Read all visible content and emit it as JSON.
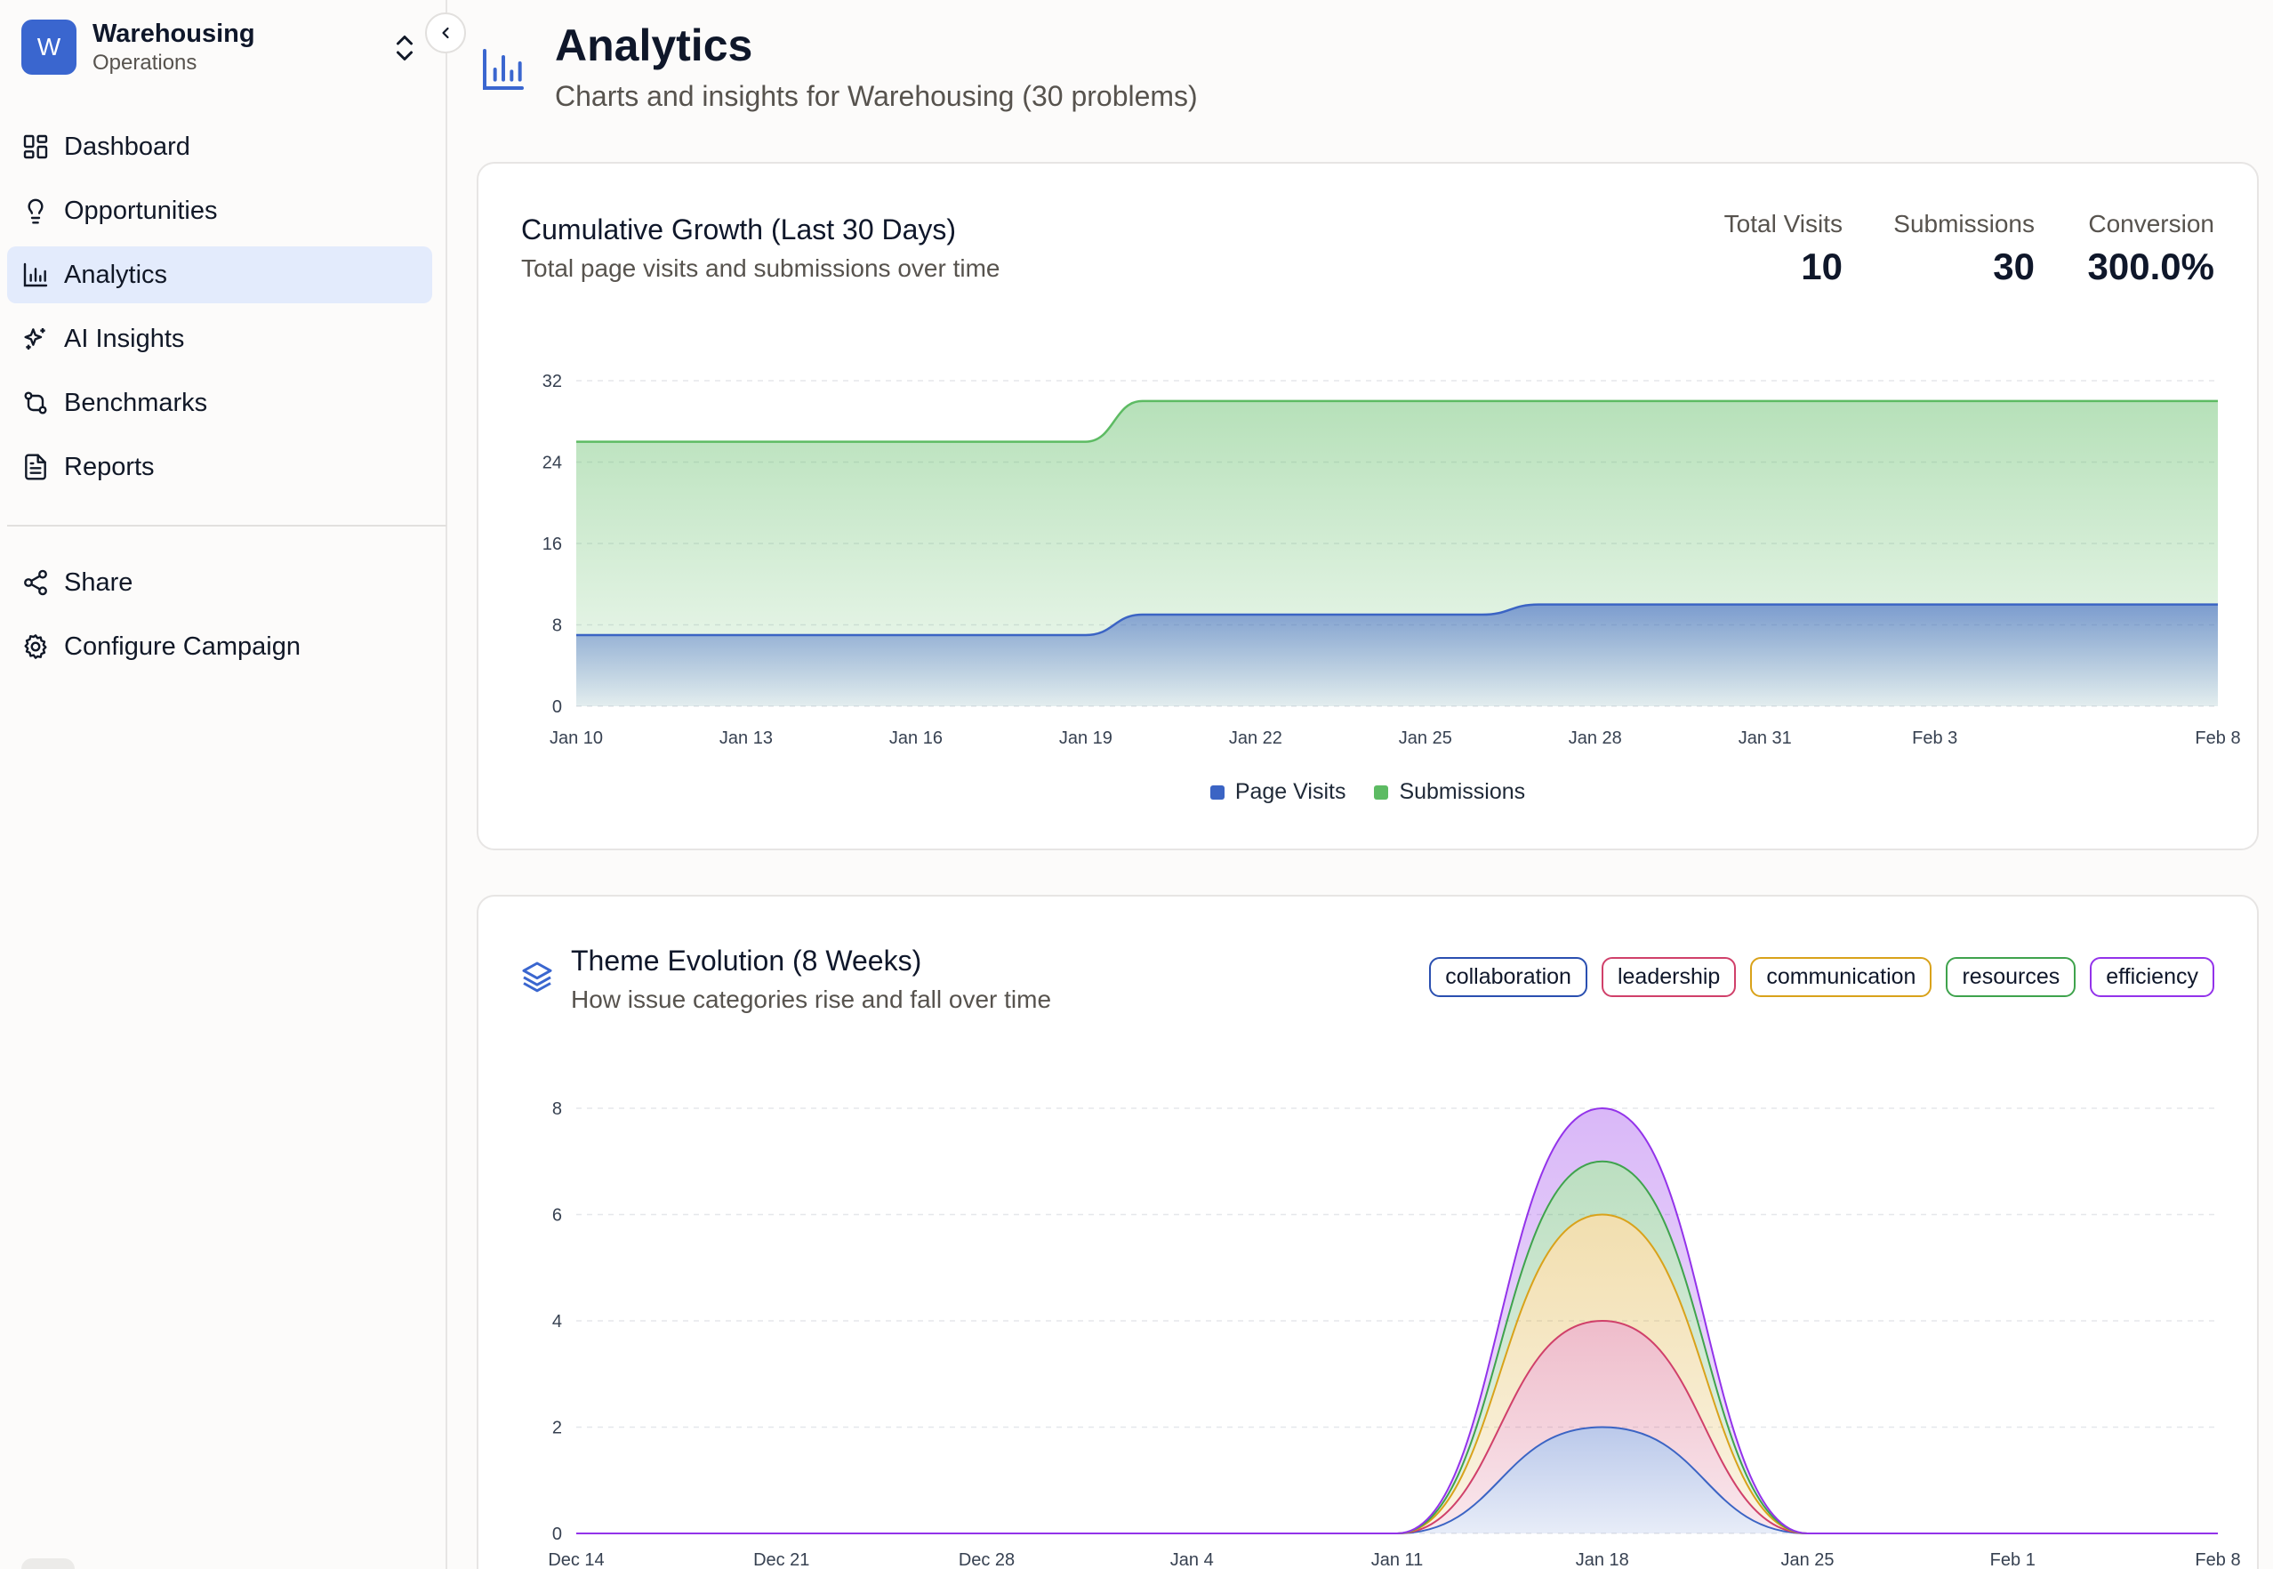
{
  "workspace": {
    "initial": "W",
    "name": "Warehousing",
    "subtitle": "Operations"
  },
  "nav": {
    "items": [
      {
        "label": "Dashboard",
        "icon": "dashboard-icon"
      },
      {
        "label": "Opportunities",
        "icon": "lightbulb-icon"
      },
      {
        "label": "Analytics",
        "icon": "bar-chart-icon",
        "active": true
      },
      {
        "label": "AI Insights",
        "icon": "sparkles-icon"
      },
      {
        "label": "Benchmarks",
        "icon": "git-compare-icon"
      },
      {
        "label": "Reports",
        "icon": "document-icon"
      }
    ],
    "secondary": [
      {
        "label": "Share",
        "icon": "share-icon"
      },
      {
        "label": "Configure Campaign",
        "icon": "gear-icon"
      }
    ]
  },
  "header": {
    "title": "Analytics",
    "subtitle": "Charts and insights for Warehousing (30 problems)"
  },
  "growth_card": {
    "title": "Cumulative Growth (Last 30 Days)",
    "subtitle": "Total page visits and submissions over time",
    "stats": [
      {
        "label": "Total Visits",
        "value": "10"
      },
      {
        "label": "Submissions",
        "value": "30"
      },
      {
        "label": "Conversion",
        "value": "300.0%"
      }
    ]
  },
  "theme_card": {
    "title": "Theme Evolution (8 Weeks)",
    "subtitle": "How issue categories rise and fall over time",
    "themes": [
      {
        "label": "collaboration",
        "color": "#2a4fb0"
      },
      {
        "label": "leadership",
        "color": "#d0406a"
      },
      {
        "label": "communication",
        "color": "#d9a21a"
      },
      {
        "label": "resources",
        "color": "#3fa34d"
      },
      {
        "label": "efficiency",
        "color": "#9333ea"
      }
    ]
  },
  "chart_data": [
    {
      "type": "area",
      "title": "Cumulative Growth (Last 30 Days)",
      "x_tick_labels": [
        "Jan 10",
        "Jan 13",
        "Jan 16",
        "Jan 19",
        "Jan 22",
        "Jan 25",
        "Jan 28",
        "Jan 31",
        "Feb 3",
        "Feb 8"
      ],
      "x_tick_days": [
        0,
        3,
        6,
        9,
        12,
        15,
        18,
        21,
        24,
        29
      ],
      "x_range_days": [
        0,
        29
      ],
      "ylim": [
        0,
        32
      ],
      "y_ticks": [
        0,
        8,
        16,
        24,
        32
      ],
      "grid": true,
      "legend_position": "bottom",
      "series": [
        {
          "name": "Page Visits",
          "color": "#3b64c4",
          "values": [
            7,
            7,
            7,
            7,
            7,
            7,
            7,
            7,
            7,
            7,
            9,
            9,
            9,
            9,
            9,
            9,
            9,
            10,
            10,
            10,
            10,
            10,
            10,
            10,
            10,
            10,
            10,
            10,
            10,
            10
          ]
        },
        {
          "name": "Submissions",
          "color": "#5dbb63",
          "values": [
            26,
            26,
            26,
            26,
            26,
            26,
            26,
            26,
            26,
            26,
            30,
            30,
            30,
            30,
            30,
            30,
            30,
            30,
            30,
            30,
            30,
            30,
            30,
            30,
            30,
            30,
            30,
            30,
            30,
            30
          ]
        }
      ]
    },
    {
      "type": "area",
      "title": "Theme Evolution (8 Weeks)",
      "stacked": true,
      "x_tick_labels": [
        "Dec 14",
        "Dec 21",
        "Dec 28",
        "Jan 4",
        "Jan 11",
        "Jan 18",
        "Jan 25",
        "Feb 1",
        "Feb 8"
      ],
      "ylim": [
        0,
        8
      ],
      "y_ticks": [
        0,
        2,
        4,
        6,
        8
      ],
      "grid": true,
      "series": [
        {
          "name": "collaboration",
          "color": "#3b64c4",
          "values": [
            0,
            0,
            0,
            0,
            0,
            2,
            0,
            0,
            0
          ]
        },
        {
          "name": "leadership",
          "color": "#d0406a",
          "values": [
            0,
            0,
            0,
            0,
            0,
            2,
            0,
            0,
            0
          ]
        },
        {
          "name": "communication",
          "color": "#d9a21a",
          "values": [
            0,
            0,
            0,
            0,
            0,
            2,
            0,
            0,
            0
          ]
        },
        {
          "name": "resources",
          "color": "#3fa34d",
          "values": [
            0,
            0,
            0,
            0,
            0,
            1,
            0,
            0,
            0
          ]
        },
        {
          "name": "efficiency",
          "color": "#9333ea",
          "values": [
            0,
            0,
            0,
            0,
            0,
            1,
            0,
            0,
            0
          ]
        }
      ]
    }
  ]
}
